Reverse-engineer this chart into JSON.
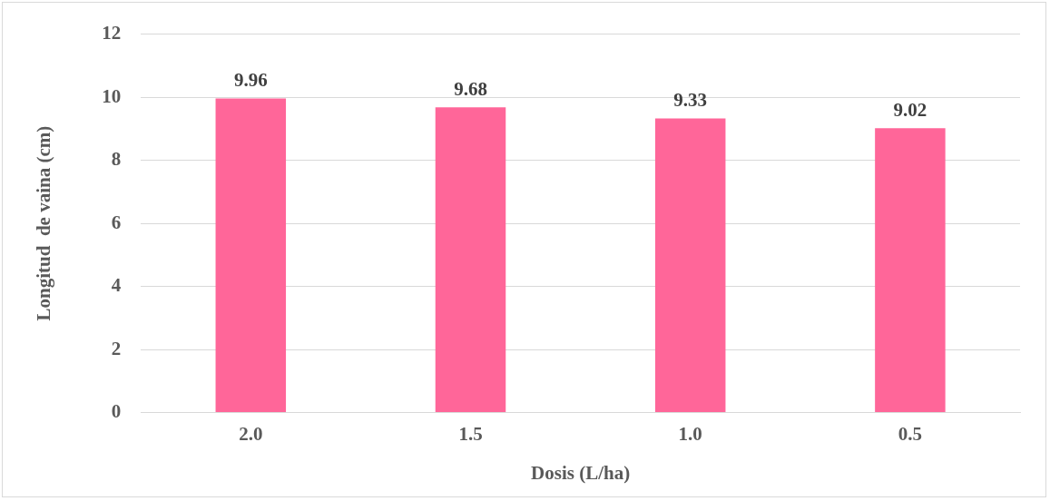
{
  "chart_data": {
    "type": "bar",
    "xlabel": "Dosis (L/ha)",
    "ylabel": "Longitud  de vaina (cm)",
    "categories": [
      "2.0",
      "1.5",
      "1.0",
      "0.5"
    ],
    "values": [
      9.96,
      9.68,
      9.33,
      9.02
    ],
    "color": "#ff6699",
    "ylim": [
      0,
      12
    ],
    "yticks": [
      0,
      2,
      4,
      6,
      8,
      10,
      12
    ],
    "grid": "y",
    "data_labels": true
  }
}
